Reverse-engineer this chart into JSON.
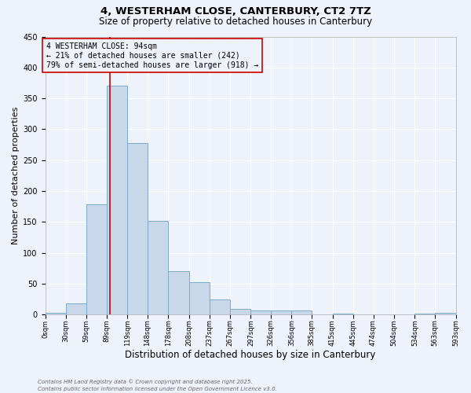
{
  "title1": "4, WESTERHAM CLOSE, CANTERBURY, CT2 7TZ",
  "title2": "Size of property relative to detached houses in Canterbury",
  "xlabel": "Distribution of detached houses by size in Canterbury",
  "ylabel": "Number of detached properties",
  "bin_edges": [
    0,
    30,
    59,
    89,
    119,
    148,
    178,
    208,
    237,
    267,
    297,
    326,
    356,
    385,
    415,
    445,
    474,
    504,
    534,
    563,
    593
  ],
  "bin_labels": [
    "0sqm",
    "30sqm",
    "59sqm",
    "89sqm",
    "119sqm",
    "148sqm",
    "178sqm",
    "208sqm",
    "237sqm",
    "267sqm",
    "297sqm",
    "326sqm",
    "356sqm",
    "385sqm",
    "415sqm",
    "445sqm",
    "474sqm",
    "504sqm",
    "534sqm",
    "563sqm",
    "593sqm"
  ],
  "bar_heights": [
    3,
    18,
    178,
    370,
    278,
    152,
    70,
    53,
    24,
    9,
    6,
    6,
    7,
    0,
    2,
    0,
    0,
    0,
    2,
    3
  ],
  "bar_color": "#c8d8ea",
  "bar_edgecolor": "#7aaacc",
  "property_size": 94,
  "vline_color": "#cc0000",
  "ylim": [
    0,
    450
  ],
  "yticks": [
    0,
    50,
    100,
    150,
    200,
    250,
    300,
    350,
    400,
    450
  ],
  "annotation_text": "4 WESTERHAM CLOSE: 94sqm\n← 21% of detached houses are smaller (242)\n79% of semi-detached houses are larger (918) →",
  "annotation_box_edgecolor": "#cc0000",
  "footer1": "Contains HM Land Registry data © Crown copyright and database right 2025.",
  "footer2": "Contains public sector information licensed under the Open Government Licence v3.0.",
  "bg_color": "#eef2fb",
  "grid_color": "#ffffff",
  "title1_fontsize": 9.5,
  "title2_fontsize": 8.5,
  "xlabel_fontsize": 8.5,
  "ylabel_fontsize": 8,
  "annotation_fontsize": 7,
  "tick_fontsize": 6,
  "footer_fontsize": 5
}
